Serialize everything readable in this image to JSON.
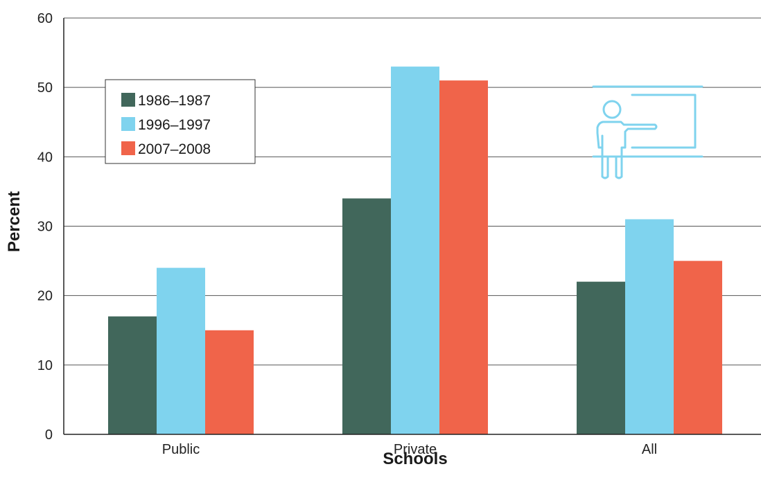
{
  "chart_data": {
    "type": "bar",
    "xlabel": "Schools",
    "ylabel": "Percent",
    "categories": [
      "Public",
      "Private",
      "All"
    ],
    "series": [
      {
        "name": "1986–1987",
        "color": "#41675b",
        "values": [
          17,
          34,
          22
        ]
      },
      {
        "name": "1996–1997",
        "color": "#7fd3ee",
        "values": [
          24,
          53,
          31
        ]
      },
      {
        "name": "2007–2008",
        "color": "#f0644a",
        "values": [
          15,
          51,
          25
        ]
      }
    ],
    "ylim": [
      0,
      60
    ],
    "yticks": [
      0,
      10,
      20,
      30,
      40,
      50,
      60
    ],
    "grid": true,
    "legend_position": "top-left",
    "icon": "teacher-at-board-icon",
    "icon_color": "#7fd3ee"
  }
}
